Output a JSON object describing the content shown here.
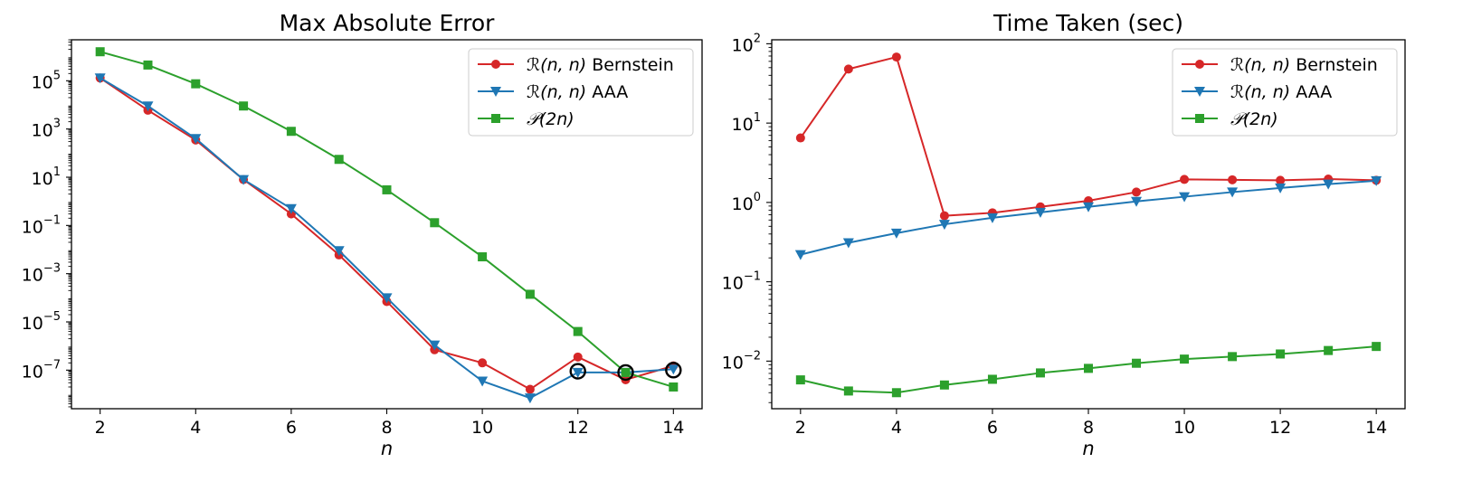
{
  "chart_data": [
    {
      "type": "line",
      "yscale": "log",
      "title": "Max Absolute Error",
      "xlabel": "n",
      "ylabel": "",
      "xlim": [
        1.4,
        14.6
      ],
      "ylim_log10": [
        -8.6,
        6.7
      ],
      "xticks": [
        2,
        4,
        6,
        8,
        10,
        12,
        14
      ],
      "yticks": [
        {
          "base": "10",
          "exp": "5"
        },
        {
          "base": "10",
          "exp": "3"
        },
        {
          "base": "10",
          "exp": "1"
        },
        {
          "base": "10",
          "exp": "−1"
        },
        {
          "base": "10",
          "exp": "−3"
        },
        {
          "base": "10",
          "exp": "−5"
        },
        {
          "base": "10",
          "exp": "−7"
        }
      ],
      "ytick_exps": [
        5,
        3,
        1,
        -1,
        -3,
        -5,
        -7
      ],
      "legend_position": "top-right",
      "series": [
        {
          "name": "Bernstein",
          "label_prefix": "ℛ(n, n)",
          "color": "#d62728",
          "marker": "circle",
          "x": [
            2,
            3,
            4,
            5,
            6,
            7,
            8,
            9,
            10,
            11,
            12,
            13,
            14
          ],
          "y": [
            130000,
            6000,
            350,
            8,
            0.3,
            0.006,
            7e-05,
            7e-07,
            2e-07,
            1.6e-08,
            3.5e-07,
            4e-08,
            1.5e-07
          ]
        },
        {
          "name": "AAA",
          "label_prefix": "ℛ(n, n)",
          "color": "#1f77b4",
          "marker": "triangle-down",
          "x": [
            2,
            3,
            4,
            5,
            6,
            7,
            8,
            9,
            10,
            11,
            12,
            13,
            14
          ],
          "y": [
            130000,
            9000,
            400,
            8,
            0.5,
            0.009,
            0.0001,
            1.1e-06,
            3.5e-08,
            7e-09,
            8e-08,
            8e-08,
            1.1e-07
          ]
        },
        {
          "name": "",
          "label_prefix": "𝒫(2n)",
          "color": "#2ca02c",
          "marker": "square",
          "x": [
            2,
            3,
            4,
            5,
            6,
            7,
            8,
            9,
            10,
            11,
            12,
            13,
            14
          ],
          "y": [
            1600000,
            450000,
            75000,
            9000,
            800,
            55,
            3,
            0.13,
            0.005,
            0.00014,
            4e-06,
            8e-08,
            2e-08
          ]
        }
      ],
      "highlighted_points": [
        {
          "x": 12,
          "y": 9e-08
        },
        {
          "x": 13,
          "y": 8e-08
        },
        {
          "x": 14,
          "y": 1e-07
        }
      ]
    },
    {
      "type": "line",
      "yscale": "log",
      "title": "Time Taken (sec)",
      "xlabel": "n",
      "ylabel": "",
      "xlim": [
        1.4,
        14.6
      ],
      "ylim_log10": [
        -2.6,
        2.05
      ],
      "xticks": [
        2,
        4,
        6,
        8,
        10,
        12,
        14
      ],
      "yticks": [
        {
          "base": "10",
          "exp": "2"
        },
        {
          "base": "10",
          "exp": "1"
        },
        {
          "base": "10",
          "exp": "0"
        },
        {
          "base": "10",
          "exp": "−1"
        },
        {
          "base": "10",
          "exp": "−2"
        }
      ],
      "ytick_exps": [
        2,
        1,
        0,
        -1,
        -2
      ],
      "legend_position": "top-right",
      "series": [
        {
          "name": "Bernstein",
          "label_prefix": "ℛ(n, n)",
          "color": "#d62728",
          "marker": "circle",
          "x": [
            2,
            3,
            4,
            5,
            6,
            7,
            8,
            9,
            10,
            11,
            12,
            13,
            14
          ],
          "y": [
            6.5,
            48,
            68,
            0.68,
            0.74,
            0.88,
            1.05,
            1.35,
            1.95,
            1.93,
            1.9,
            1.97,
            1.9
          ]
        },
        {
          "name": "AAA",
          "label_prefix": "ℛ(n, n)",
          "color": "#1f77b4",
          "marker": "triangle-down",
          "x": [
            2,
            3,
            4,
            5,
            6,
            7,
            8,
            9,
            10,
            11,
            12,
            13,
            14
          ],
          "y": [
            0.22,
            0.31,
            0.41,
            0.53,
            0.64,
            0.75,
            0.88,
            1.03,
            1.18,
            1.35,
            1.52,
            1.7,
            1.88
          ]
        },
        {
          "name": "",
          "label_prefix": "𝒫(2n)",
          "color": "#2ca02c",
          "marker": "square",
          "x": [
            2,
            3,
            4,
            5,
            6,
            7,
            8,
            9,
            10,
            11,
            12,
            13,
            14
          ],
          "y": [
            0.0058,
            0.0042,
            0.004,
            0.005,
            0.0059,
            0.0071,
            0.0081,
            0.0094,
            0.0106,
            0.0114,
            0.0123,
            0.0136,
            0.0153
          ]
        }
      ]
    }
  ]
}
